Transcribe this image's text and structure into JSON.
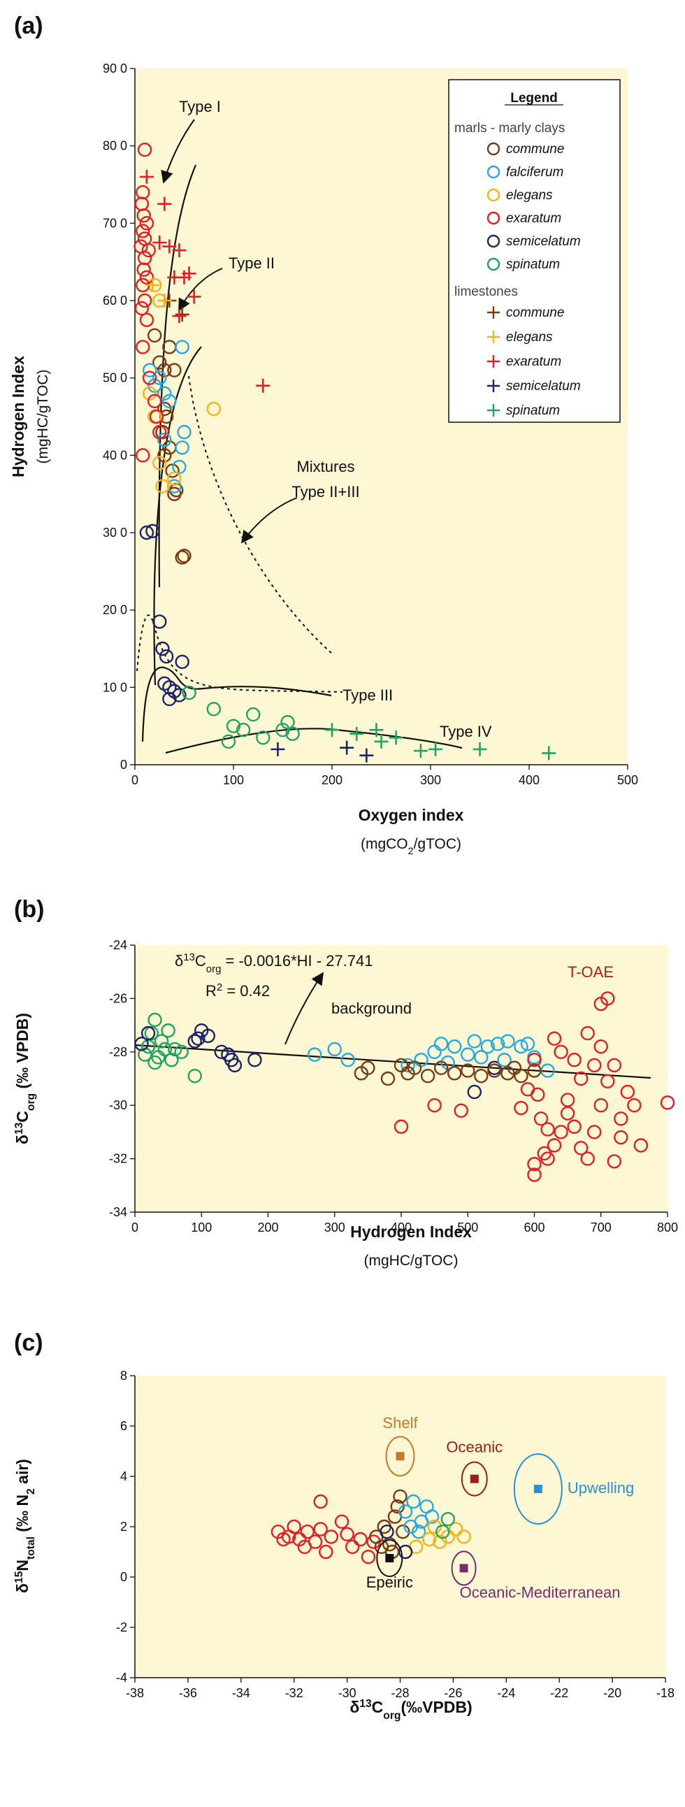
{
  "chart_data": [
    {
      "type": "scatter",
      "panel_label": "(a)",
      "x_label": "Oxygen index",
      "x_sublabel": [
        "(mgCO",
        {
          "text": "2",
          "shift": "sub"
        },
        "/gTOC)"
      ],
      "y_label": "Hydrogen Index",
      "y_sublabel": "(mgHC/gTOC)",
      "xlim": [
        0,
        500
      ],
      "xticks": [
        0,
        100,
        200,
        300,
        400,
        500
      ],
      "ylim": [
        0,
        900
      ],
      "yticks": [
        0,
        {
          "value": 100,
          "label": "10 0"
        },
        {
          "value": 200,
          "label": "20 0"
        },
        {
          "value": 300,
          "label": "30 0"
        },
        {
          "value": 400,
          "label": "40 0"
        },
        {
          "value": 500,
          "label": "50 0"
        },
        {
          "value": 600,
          "label": "60 0"
        },
        {
          "value": 700,
          "label": "70 0"
        },
        {
          "value": 800,
          "label": "80 0"
        },
        {
          "value": 900,
          "label": "90 0"
        }
      ],
      "background": "#fdf8d3",
      "legend": {
        "title": "Legend"
      },
      "annotations": [
        "Type I",
        "Type II",
        "Mixtures",
        "Type II+III",
        "Type III",
        "Type IV"
      ],
      "series": [
        {
          "name": "commune",
          "group": "marls - marly clays",
          "marker": "circle",
          "color": "#7a3b12",
          "x": [
            20,
            25,
            30,
            35,
            40,
            30,
            32,
            28,
            35,
            30,
            38,
            40,
            42,
            50,
            48
          ],
          "y": [
            555,
            520,
            510,
            540,
            510,
            460,
            450,
            430,
            410,
            400,
            380,
            350,
            355,
            270,
            268
          ]
        },
        {
          "name": "falciferum",
          "group": "marls - marly clays",
          "marker": "circle",
          "color": "#27aae1",
          "x": [
            15,
            20,
            30,
            35,
            48,
            50,
            48,
            45,
            40,
            25,
            30
          ],
          "y": [
            510,
            490,
            480,
            470,
            540,
            430,
            410,
            385,
            360,
            500,
            420
          ]
        },
        {
          "name": "elegans",
          "group": "marls - marly clays",
          "marker": "circle",
          "color": "#f5b21a",
          "x": [
            20,
            25,
            15,
            20,
            25,
            28,
            80,
            40
          ],
          "y": [
            620,
            600,
            480,
            450,
            390,
            360,
            460,
            370
          ]
        },
        {
          "name": "exaratum",
          "group": "marls - marly clays",
          "marker": "circle",
          "color": "#e31e24",
          "x": [
            10,
            8,
            7,
            9,
            12,
            8,
            10,
            6,
            14,
            10,
            9,
            12,
            8,
            10,
            7,
            12,
            8,
            15,
            20,
            22,
            8,
            25
          ],
          "y": [
            795,
            740,
            725,
            710,
            700,
            690,
            680,
            670,
            665,
            655,
            640,
            630,
            620,
            600,
            590,
            575,
            540,
            500,
            470,
            450,
            400,
            430
          ]
        },
        {
          "name": "semicelatum",
          "group": "marls - marly clays",
          "marker": "circle",
          "color": "#1c2466",
          "x": [
            12,
            18,
            25,
            28,
            32,
            48,
            30,
            35,
            40,
            45,
            35
          ],
          "y": [
            300,
            302,
            185,
            150,
            140,
            133,
            105,
            100,
            95,
            90,
            85
          ]
        },
        {
          "name": "spinatum",
          "group": "marls - marly clays",
          "marker": "circle",
          "color": "#22a363",
          "x": [
            55,
            80,
            95,
            110,
            120,
            130,
            150,
            155,
            160,
            100
          ],
          "y": [
            93,
            72,
            30,
            45,
            65,
            35,
            45,
            55,
            40,
            50
          ]
        },
        {
          "name": "commune",
          "group": "limestones",
          "marker": "plus",
          "color": "#7a3b12",
          "x": [
            48,
            35
          ],
          "y": [
            582,
            600
          ]
        },
        {
          "name": "elegans",
          "group": "limestones",
          "marker": "plus",
          "color": "#f5b21a",
          "x": [
            18,
            30
          ],
          "y": [
            620,
            600
          ]
        },
        {
          "name": "exaratum",
          "group": "limestones",
          "marker": "plus",
          "color": "#e31e24",
          "x": [
            12,
            30,
            25,
            35,
            45,
            40,
            50,
            55,
            60,
            45,
            130
          ],
          "y": [
            760,
            725,
            675,
            670,
            665,
            630,
            630,
            635,
            605,
            580,
            490
          ]
        },
        {
          "name": "semicelatum",
          "group": "limestones",
          "marker": "plus",
          "color": "#1c2466",
          "x": [
            145,
            215,
            235
          ],
          "y": [
            20,
            22,
            12
          ]
        },
        {
          "name": "spinatum",
          "group": "limestones",
          "marker": "plus",
          "color": "#22a363",
          "x": [
            200,
            225,
            245,
            250,
            265,
            290,
            305,
            350,
            420
          ],
          "y": [
            45,
            40,
            45,
            30,
            35,
            18,
            20,
            20,
            15
          ]
        }
      ]
    },
    {
      "type": "scatter",
      "panel_label": "(b)",
      "x_label": "Hydrogen Index",
      "x_sublabel": "(mgHC/gTOC)",
      "y_label": [
        "δ",
        {
          "text": "13",
          "shift": "sup"
        },
        "C",
        {
          "text": "org",
          "shift": "sub"
        },
        " (‰ VPDB)"
      ],
      "xlim": [
        0,
        800
      ],
      "xticks": [
        0,
        100,
        200,
        300,
        400,
        500,
        600,
        700,
        800
      ],
      "ylim": [
        -34,
        -24
      ],
      "yticks": [
        -34,
        -32,
        -30,
        -28,
        -26,
        -24
      ],
      "background": "#fdf8d3",
      "equation": [
        "δ",
        {
          "text": "13",
          "shift": "sup"
        },
        "C",
        {
          "text": "org",
          "shift": "sub"
        },
        " = -0.0016*HI - 27.741"
      ],
      "r2": [
        "R",
        {
          "text": "2",
          "shift": "sup"
        },
        " = 0.42"
      ],
      "annotations": [
        "background",
        "T-OAE"
      ],
      "series": [
        {
          "marker": "circle",
          "color": "#22a363",
          "x": [
            15,
            20,
            25,
            30,
            35,
            40,
            50,
            55,
            60,
            70,
            90,
            45,
            30
          ],
          "y": [
            -28.1,
            -27.8,
            -27.3,
            -26.8,
            -28.2,
            -27.6,
            -27.2,
            -28.3,
            -27.9,
            -28.0,
            -28.9,
            -27.9,
            -28.4
          ]
        },
        {
          "marker": "circle",
          "color": "#1c2466",
          "x": [
            10,
            20,
            95,
            100,
            110,
            90,
            140,
            150,
            145,
            180,
            130,
            510,
            540
          ],
          "y": [
            -27.7,
            -27.3,
            -27.5,
            -27.2,
            -27.4,
            -27.6,
            -28.1,
            -28.5,
            -28.3,
            -28.3,
            -28.0,
            -29.5,
            -28.6
          ]
        },
        {
          "marker": "circle",
          "color": "#27aae1",
          "x": [
            270,
            300,
            320,
            450,
            460,
            480,
            500,
            510,
            530,
            545,
            560,
            580,
            590,
            600,
            620,
            410,
            430,
            470,
            520,
            555
          ],
          "y": [
            -28.1,
            -27.9,
            -28.3,
            -28.0,
            -27.7,
            -27.8,
            -28.1,
            -27.6,
            -27.8,
            -27.7,
            -27.6,
            -27.8,
            -27.7,
            -28.2,
            -28.7,
            -28.5,
            -28.3,
            -28.4,
            -28.2,
            -28.3
          ]
        },
        {
          "marker": "circle",
          "color": "#7a3b12",
          "x": [
            340,
            350,
            380,
            400,
            410,
            420,
            440,
            460,
            480,
            500,
            520,
            540,
            560,
            580,
            600,
            570
          ],
          "y": [
            -28.8,
            -28.6,
            -29.0,
            -28.5,
            -28.8,
            -28.6,
            -28.9,
            -28.6,
            -28.8,
            -28.7,
            -28.9,
            -28.7,
            -28.8,
            -28.9,
            -28.7,
            -28.6
          ]
        },
        {
          "marker": "circle",
          "color": "#e31e24",
          "x": [
            400,
            450,
            490,
            580,
            590,
            600,
            605,
            610,
            615,
            620,
            600,
            600,
            630,
            630,
            640,
            650,
            660,
            660,
            670,
            680,
            690,
            690,
            700,
            700,
            710,
            720,
            720,
            730,
            740,
            750,
            760,
            800,
            640,
            670,
            650,
            710,
            730,
            680,
            620,
            700
          ],
          "y": [
            -30.8,
            -30.0,
            -30.2,
            -30.1,
            -29.4,
            -28.3,
            -29.6,
            -30.5,
            -31.8,
            -32.0,
            -32.2,
            -32.6,
            -31.5,
            -27.5,
            -28.0,
            -29.8,
            -30.8,
            -28.3,
            -29.0,
            -27.3,
            -28.5,
            -31.0,
            -30.0,
            -26.2,
            -26.0,
            -28.5,
            -32.1,
            -30.5,
            -29.5,
            -30.0,
            -31.5,
            -29.9,
            -31.0,
            -31.6,
            -30.3,
            -29.1,
            -31.2,
            -32.0,
            -30.9,
            -27.8
          ]
        }
      ]
    },
    {
      "type": "scatter",
      "panel_label": "(c)",
      "x_label": [
        "δ",
        {
          "text": "13",
          "shift": "sup"
        },
        "C",
        {
          "text": "org",
          "shift": "sub"
        },
        "(‰VPDB)"
      ],
      "y_label": [
        "δ",
        {
          "text": "15",
          "shift": "sup"
        },
        "N",
        {
          "text": "total",
          "shift": "sub"
        },
        " (‰ N",
        {
          "text": "2",
          "shift": "sub"
        },
        " air)"
      ],
      "xlim": [
        -38,
        -18
      ],
      "xticks": [
        -38,
        -36,
        -34,
        -32,
        -30,
        -28,
        -26,
        -24,
        -22,
        -20,
        -18
      ],
      "ylim": [
        -4,
        8
      ],
      "yticks": [
        -4,
        -2,
        0,
        2,
        4,
        6,
        8
      ],
      "background": "#fdf8d3",
      "series": [
        {
          "marker": "circle",
          "color": "#e31e24",
          "x": [
            -32.6,
            -32.2,
            -32.0,
            -31.8,
            -31.5,
            -31.2,
            -31.0,
            -30.8,
            -31.0,
            -30.6,
            -30.0,
            -29.8,
            -29.5,
            -29.2,
            -29.0,
            -31.6,
            -32.4,
            -30.2
          ],
          "y": [
            1.8,
            1.6,
            2.0,
            1.5,
            1.8,
            1.4,
            1.9,
            1.0,
            3.0,
            1.6,
            1.7,
            1.2,
            1.5,
            0.8,
            1.4,
            1.2,
            1.5,
            2.2
          ]
        },
        {
          "marker": "circle",
          "color": "#7a3b12",
          "x": [
            -28.9,
            -28.6,
            -28.4,
            -28.2,
            -28.0,
            -28.3,
            -27.9,
            -28.7,
            -28.1
          ],
          "y": [
            1.6,
            2.0,
            1.3,
            2.4,
            3.2,
            1.0,
            1.8,
            1.2,
            2.8
          ]
        },
        {
          "marker": "circle",
          "color": "#27aae1",
          "x": [
            -27.8,
            -27.5,
            -27.2,
            -27.0,
            -27.6,
            -26.8,
            -27.3
          ],
          "y": [
            2.6,
            3.0,
            2.2,
            2.8,
            2.0,
            2.4,
            1.8
          ]
        },
        {
          "marker": "circle",
          "color": "#f5b21a",
          "x": [
            -27.4,
            -26.9,
            -26.5,
            -26.2,
            -25.9,
            -25.6,
            -26.7
          ],
          "y": [
            1.2,
            1.5,
            1.4,
            1.6,
            1.9,
            1.6,
            2.0
          ]
        },
        {
          "marker": "circle",
          "color": "#1c2466",
          "x": [
            -28.5,
            -27.8
          ],
          "y": [
            1.8,
            1.0
          ]
        },
        {
          "marker": "circle",
          "color": "#22a363",
          "x": [
            -26.4,
            -26.2
          ],
          "y": [
            1.8,
            2.3
          ]
        }
      ],
      "reference_points": [
        {
          "name": "Shelf",
          "color": "#c8782a",
          "x": -28.0,
          "y": 4.8
        },
        {
          "name": "Oceanic",
          "color": "#9b1c1c",
          "x": -25.2,
          "y": 3.9
        },
        {
          "name": "Upwelling",
          "color": "#2a8fd6",
          "x": -22.8,
          "y": 3.5
        },
        {
          "name": "Epeiric",
          "color": "#111111",
          "x": -28.4,
          "y": 0.75
        },
        {
          "name": "Oceanic-Mediterranean",
          "color": "#7a2d6e",
          "x": -25.6,
          "y": 0.35
        }
      ]
    }
  ]
}
